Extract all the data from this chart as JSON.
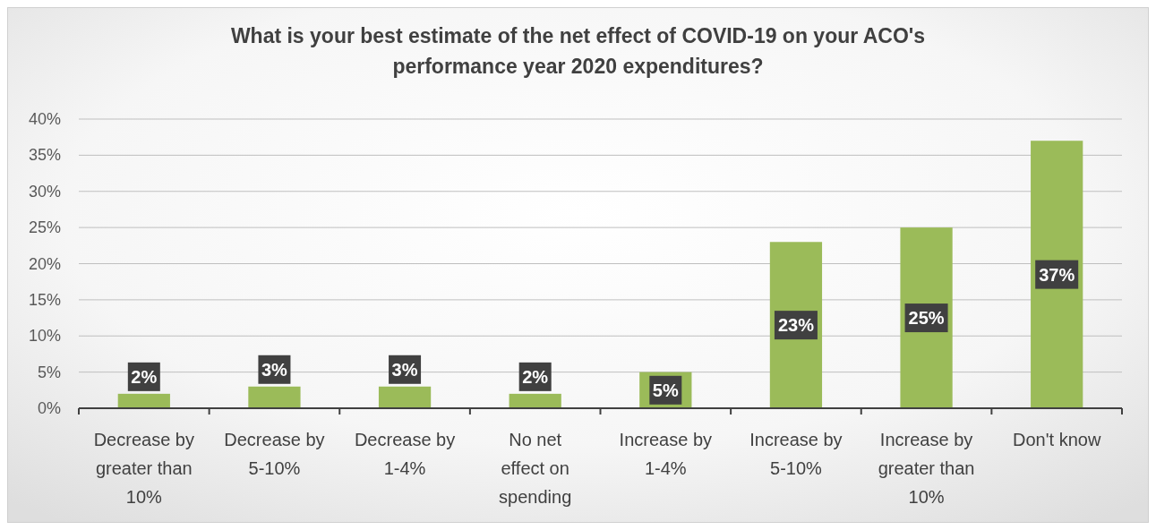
{
  "chart_data": {
    "type": "bar",
    "title": "What is your best estimate of the net effect of COVID-19 on your ACO's performance year 2020 expenditures?",
    "categories": [
      "Decrease by greater than 10%",
      "Decrease by 5-10%",
      "Decrease by 1-4%",
      "No net effect on spending",
      "Increase by 1-4%",
      "Increase by 5-10%",
      "Increase by greater than 10%",
      "Don't know"
    ],
    "values": [
      2,
      3,
      3,
      2,
      5,
      23,
      25,
      37
    ],
    "value_labels": [
      "2%",
      "3%",
      "3%",
      "2%",
      "5%",
      "23%",
      "25%",
      "37%"
    ],
    "color": "#9bbb59",
    "ylim": [
      0,
      40
    ],
    "yticks": [
      {
        "value": 0,
        "label": "0%"
      },
      {
        "value": 5,
        "label": "5%"
      },
      {
        "value": 10,
        "label": "10%"
      },
      {
        "value": 15,
        "label": "15%"
      },
      {
        "value": 20,
        "label": "20%"
      },
      {
        "value": 25,
        "label": "25%"
      },
      {
        "value": 30,
        "label": "30%"
      },
      {
        "value": 35,
        "label": "35%"
      },
      {
        "value": 40,
        "label": "40%"
      }
    ],
    "grid": "y"
  }
}
